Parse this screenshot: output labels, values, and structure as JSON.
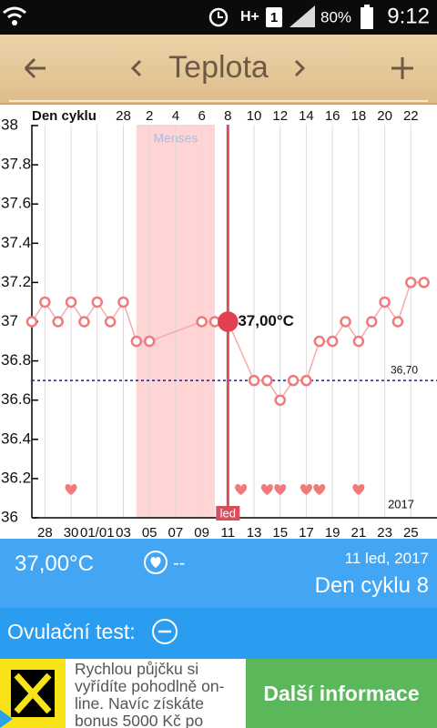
{
  "status_bar": {
    "network": "H+",
    "sim": "1",
    "battery": "80%",
    "time": "9:12"
  },
  "app_bar": {
    "title": "Teplota"
  },
  "chart_data": {
    "type": "line",
    "top_axis_label": "Den cyklu",
    "x": [
      0,
      1,
      2,
      3,
      4,
      5,
      6,
      7,
      8,
      9,
      13,
      14,
      15,
      17,
      18,
      19,
      20,
      21,
      22,
      23,
      24,
      25,
      26,
      27,
      28,
      29,
      30
    ],
    "values": [
      37.0,
      37.1,
      37.0,
      37.1,
      37.0,
      37.1,
      37.0,
      37.1,
      36.9,
      36.9,
      37.0,
      37.0,
      37.0,
      36.7,
      36.7,
      36.6,
      36.7,
      36.7,
      36.9,
      36.9,
      37.0,
      36.9,
      37.0,
      37.1,
      37.0,
      37.2,
      37.2
    ],
    "color": "#f07a7a",
    "xlim": [
      0,
      31
    ],
    "ylim": [
      36,
      38
    ],
    "yticks": [
      36,
      36.2,
      36.4,
      36.6,
      36.8,
      37,
      37.2,
      37.4,
      37.6,
      37.8,
      38
    ],
    "xticks": [
      {
        "value": 1,
        "label": "28"
      },
      {
        "value": 3,
        "label": "30"
      },
      {
        "value": 5,
        "label": "01/01"
      },
      {
        "value": 7,
        "label": "03"
      },
      {
        "value": 9,
        "label": "05"
      },
      {
        "value": 11,
        "label": "07"
      },
      {
        "value": 13,
        "label": "09"
      },
      {
        "value": 15,
        "label": "11"
      },
      {
        "value": 17,
        "label": "13"
      },
      {
        "value": 19,
        "label": "15"
      },
      {
        "value": 21,
        "label": "17"
      },
      {
        "value": 23,
        "label": "19"
      },
      {
        "value": 25,
        "label": "21"
      },
      {
        "value": 27,
        "label": "23"
      },
      {
        "value": 29,
        "label": "25"
      }
    ],
    "top_ticks": [
      {
        "value": 7,
        "label": "28"
      },
      {
        "value": 9,
        "label": "2"
      },
      {
        "value": 11,
        "label": "4"
      },
      {
        "value": 13,
        "label": "6"
      },
      {
        "value": 15,
        "label": "8"
      },
      {
        "value": 17,
        "label": "10"
      },
      {
        "value": 19,
        "label": "12"
      },
      {
        "value": 21,
        "label": "14"
      },
      {
        "value": 23,
        "label": "16"
      },
      {
        "value": 25,
        "label": "18"
      },
      {
        "value": 27,
        "label": "20"
      },
      {
        "value": 29,
        "label": "22"
      }
    ],
    "grid": true,
    "menses": {
      "label": "Menses",
      "from": 8,
      "to": 14
    },
    "coverline": {
      "value": 36.7,
      "label": "36,70"
    },
    "selected": {
      "x": 15,
      "label": "led",
      "annotation": "37,00°C"
    },
    "hearts": [
      3,
      16,
      18,
      19,
      21,
      22,
      25
    ],
    "year": "2017"
  },
  "info": {
    "temperature": "37,00°C",
    "heart": "--",
    "date": "11 led, 2017",
    "cycle_day": "Den cyklu 8"
  },
  "ovulation": {
    "label": "Ovulační test:"
  },
  "ad": {
    "lines": [
      "Rychlou půjčku si",
      "vyřídíte pohodlně on-",
      "line. Navíc získáte",
      "bonus 5000 Kč po"
    ],
    "button": "Další informace"
  }
}
